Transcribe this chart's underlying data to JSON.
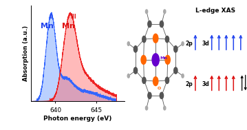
{
  "title": "L-edge XAS",
  "xlabel": "Photon energy (eV)",
  "ylabel": "Absorption (a.u.)",
  "mn2_color": "#3366ff",
  "mn2_fill_color": "#6699ff",
  "mn3_color": "#ee2222",
  "mn3_fill_color": "#ff6666",
  "mn2_label_color": "#2244ee",
  "mn3_label_color": "#dd1111",
  "mn_atom_color": "#6600cc",
  "o_atom_color": "#ff6600",
  "c_atom_color": "#555555",
  "h_atom_color": "#aaaaaa",
  "bg_color": "#ffffff",
  "blue_arrow_color": "#2244ee",
  "red_arrow_color": "#dd1111",
  "black_arrow_color": "#111111"
}
